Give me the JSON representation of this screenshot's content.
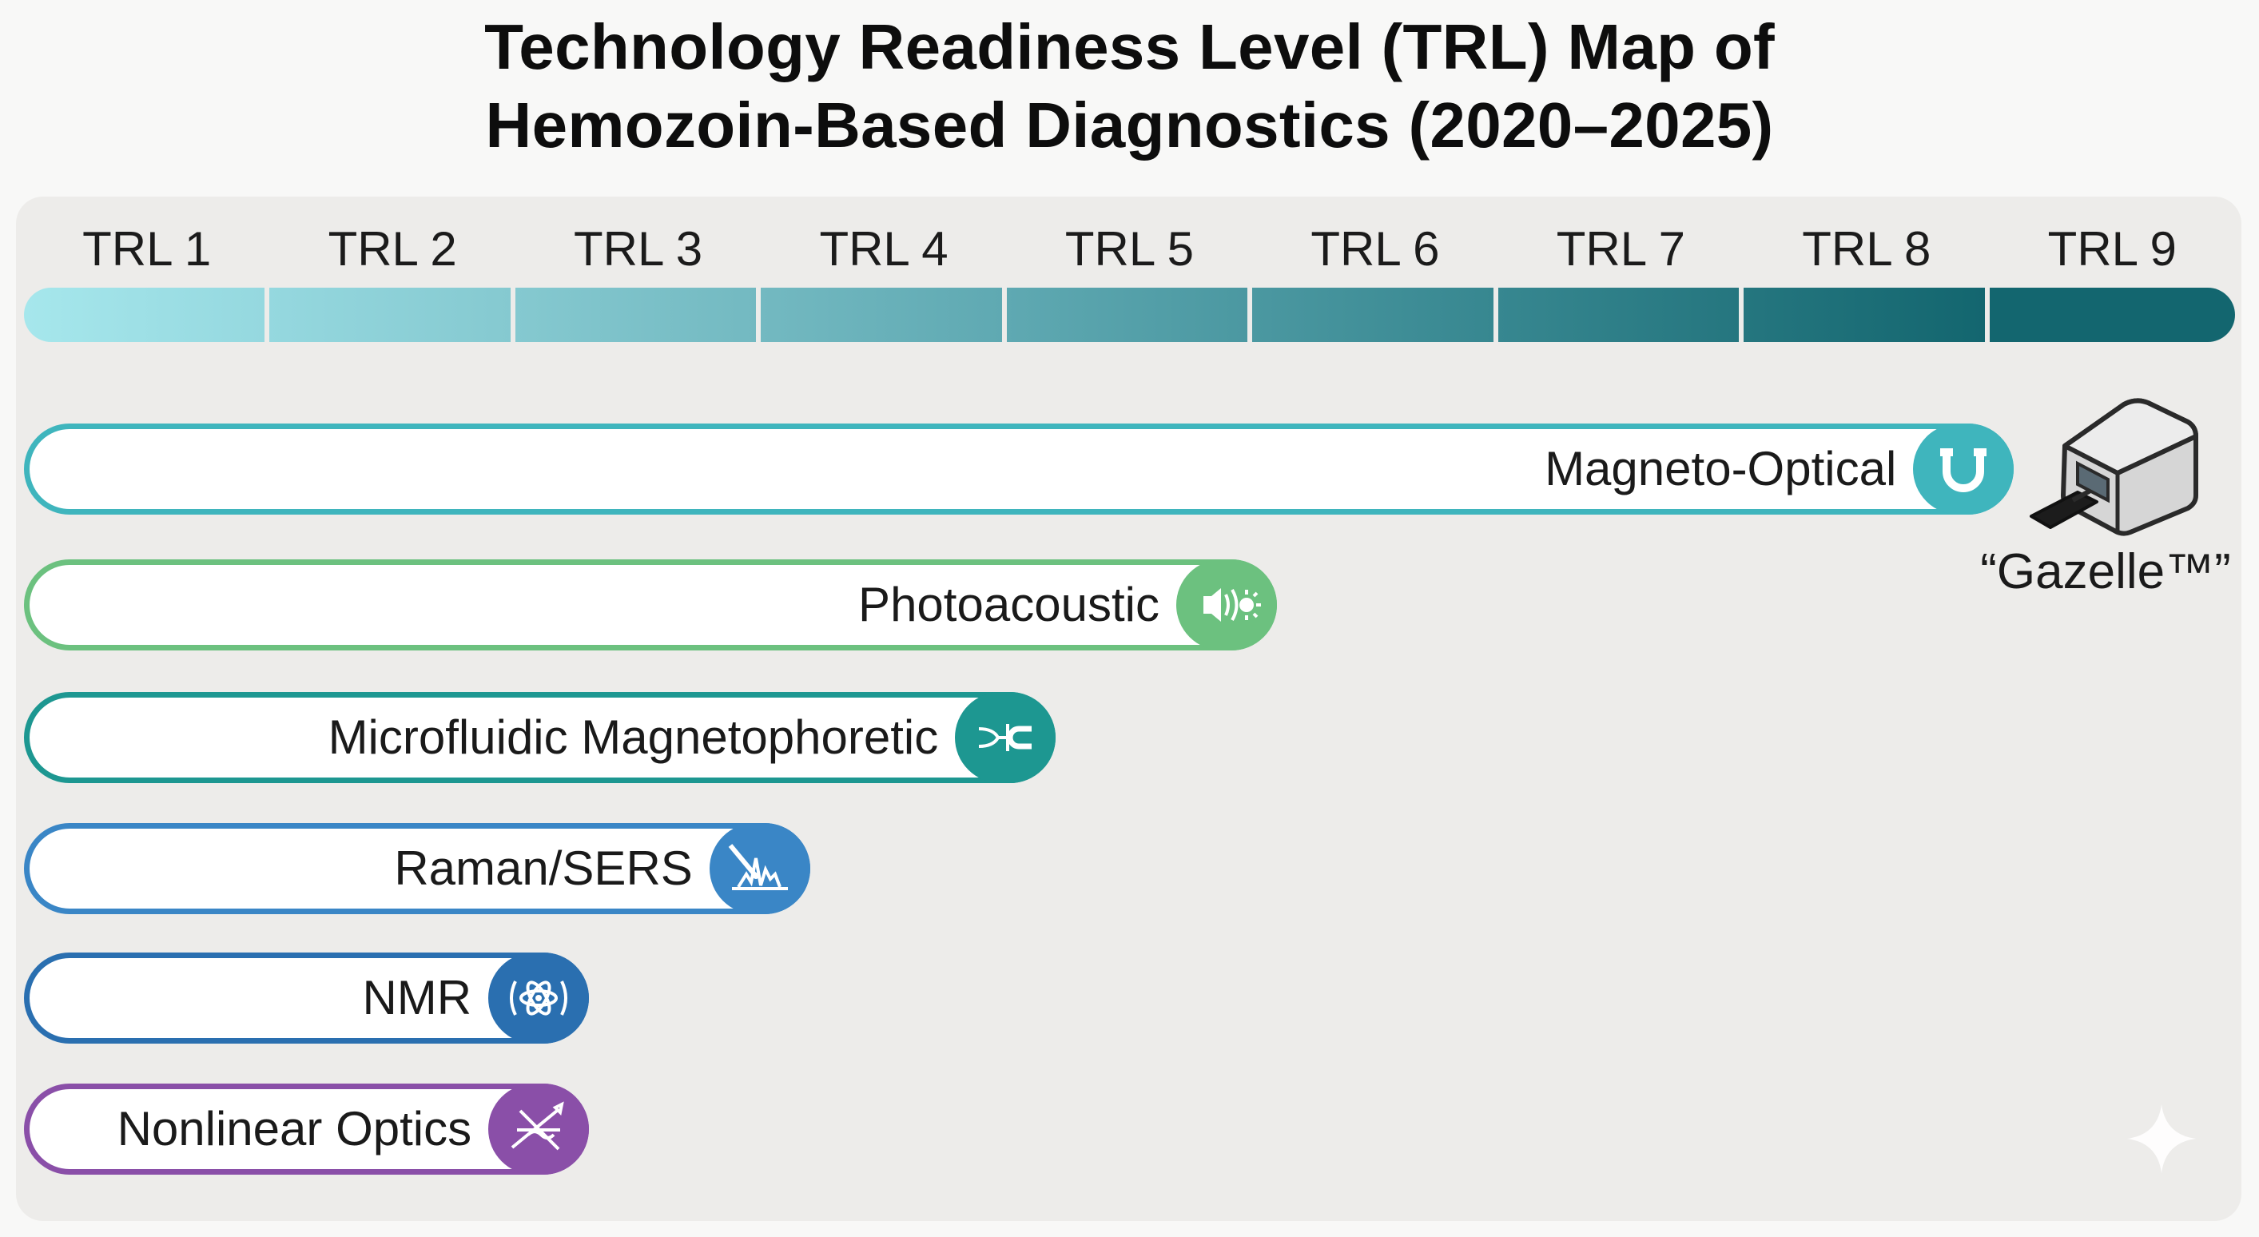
{
  "title_line1": "Technology Readiness Level (TRL) Map of",
  "title_line2": "Hemozoin-Based Diagnostics (2020–2025)",
  "chart_data": {
    "type": "bar",
    "orientation": "horizontal",
    "x_categories": [
      "TRL 1",
      "TRL 2",
      "TRL 3",
      "TRL 4",
      "TRL 5",
      "TRL 6",
      "TRL 7",
      "TRL 8",
      "TRL 9"
    ],
    "xlim": [
      0,
      9
    ],
    "categories": [
      "Magneto-Optical",
      "Photoacoustic",
      "Microfluidic Magnetophoretic",
      "Raman/SERS",
      "NMR",
      "Nonlinear Optics"
    ],
    "values": [
      8.1,
      5.1,
      4.2,
      3.2,
      2.3,
      2.3
    ],
    "colors": [
      "#3fb5bd",
      "#6cc17f",
      "#1d9791",
      "#3a86c6",
      "#2a6fb0",
      "#8a4fa8"
    ],
    "icons": [
      "magnet-icon",
      "sound-light-icon",
      "microfluidic-magnet-icon",
      "raman-spectrum-icon",
      "nmr-atom-icon",
      "laser-beam-icon"
    ],
    "annotation": {
      "text": "“Gazelle™”",
      "icon": "diagnostic-device-icon",
      "attached_to": "Magneto-Optical"
    }
  }
}
